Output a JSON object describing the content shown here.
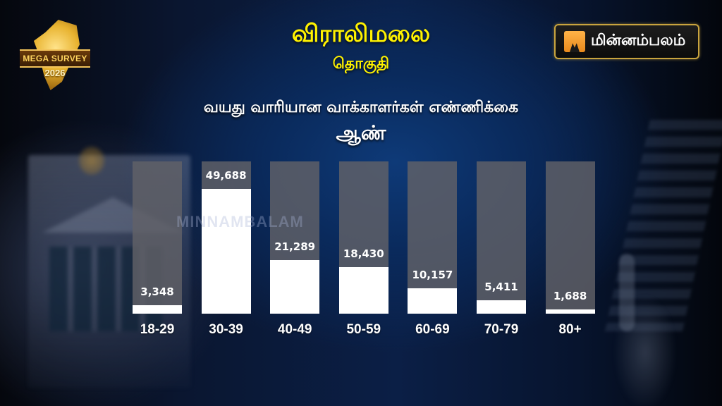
{
  "header": {
    "left_logo": {
      "banner": "MEGA SURVEY",
      "year": "2026"
    },
    "title": "விராலிமலை",
    "subtitle_line": "தொகுதி",
    "chart_heading": "வயது வாரியான வாக்காளர்கள் எண்ணிக்கை",
    "gender": "ஆண்",
    "brand": {
      "name": "மின்னம்பலம்",
      "accent": "#e8891c",
      "border": "#c9a43e"
    }
  },
  "watermark": "MINNAMBALAM",
  "colors": {
    "title": "#fff200",
    "bar_fill": "#ffffff",
    "bar_track": "#626268",
    "text": "#ffffff"
  },
  "chart_data": {
    "type": "bar",
    "title": "வயது வாரியான வாக்காளர்கள் எண்ணிக்கை — ஆண்",
    "xlabel": "",
    "ylabel": "",
    "categories": [
      "18-29",
      "30-39",
      "40-49",
      "50-59",
      "60-69",
      "70-79",
      "80+"
    ],
    "values": [
      3348,
      49688,
      21289,
      18430,
      10157,
      5411,
      1688
    ],
    "value_labels": [
      "3,348",
      "49,688",
      "21,289",
      "18,430",
      "10,157",
      "5,411",
      "1,688"
    ],
    "ylim": [
      0,
      60000
    ],
    "grid": false,
    "legend": "none"
  }
}
